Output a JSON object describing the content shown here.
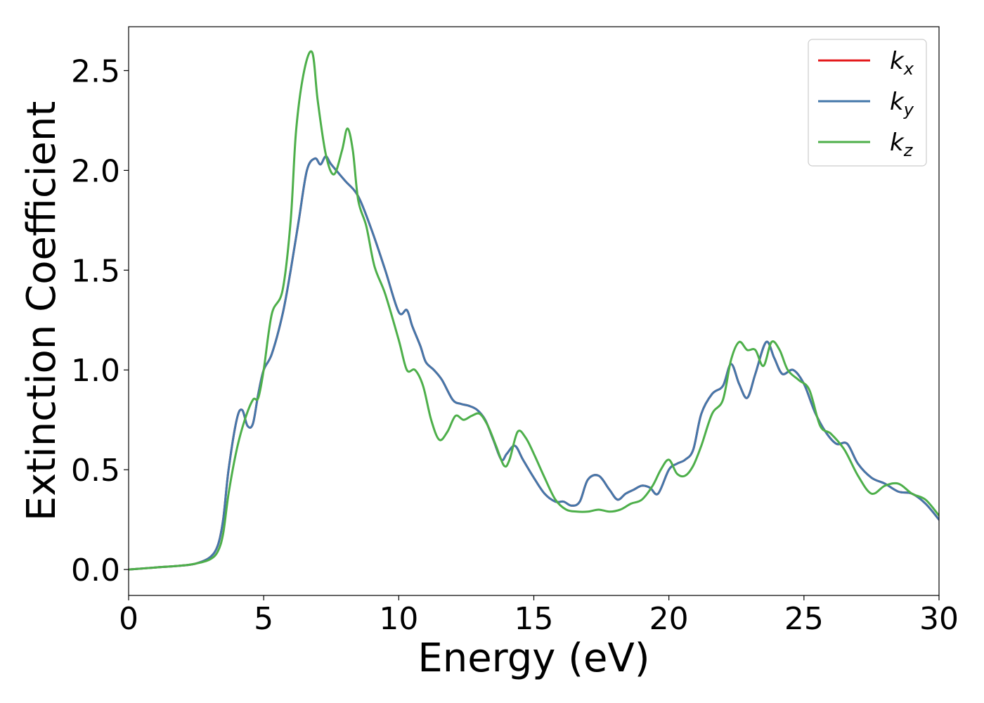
{
  "chart_data": {
    "type": "line",
    "xlabel": "Energy (eV)",
    "ylabel": "Extinction Coefficient",
    "xlim": [
      0,
      30
    ],
    "ylim": [
      -0.13,
      2.72
    ],
    "xticks": [
      0,
      5,
      10,
      15,
      20,
      25,
      30
    ],
    "xtick_labels": [
      "0",
      "5",
      "10",
      "15",
      "20",
      "25",
      "30"
    ],
    "yticks": [
      0.0,
      0.5,
      1.0,
      1.5,
      2.0,
      2.5
    ],
    "ytick_labels": [
      "0.0",
      "0.5",
      "1.0",
      "1.5",
      "2.0",
      "2.5"
    ],
    "grid": false,
    "legend_position": "top-right",
    "series": [
      {
        "name": "k_x",
        "legend_base": "k",
        "legend_sub": "x",
        "color": "#e41a1c",
        "x": [
          0,
          1,
          2,
          2.5,
          3,
          3.3,
          3.5,
          3.7,
          4.0,
          4.2,
          4.4,
          4.6,
          4.8,
          5.0,
          5.3,
          5.7,
          6.0,
          6.3,
          6.6,
          6.9,
          7.1,
          7.3,
          7.5,
          8.0,
          8.5,
          9.0,
          9.5,
          10.0,
          10.3,
          10.5,
          10.8,
          11.0,
          11.3,
          11.6,
          12.0,
          12.3,
          12.6,
          12.9,
          13.2,
          13.5,
          13.8,
          14.0,
          14.3,
          14.6,
          15.0,
          15.4,
          15.8,
          16.1,
          16.4,
          16.7,
          17.0,
          17.4,
          17.8,
          18.1,
          18.4,
          18.7,
          19.0,
          19.3,
          19.6,
          20.0,
          20.3,
          20.6,
          20.9,
          21.2,
          21.6,
          22.0,
          22.3,
          22.6,
          22.9,
          23.2,
          23.6,
          23.9,
          24.2,
          24.6,
          25.0,
          25.4,
          25.8,
          26.2,
          26.6,
          27.0,
          27.5,
          28.0,
          28.5,
          29.0,
          29.5,
          30.0
        ],
        "y": [
          0.0,
          0.01,
          0.02,
          0.03,
          0.06,
          0.12,
          0.25,
          0.5,
          0.75,
          0.8,
          0.72,
          0.73,
          0.88,
          1.0,
          1.08,
          1.28,
          1.5,
          1.75,
          2.0,
          2.06,
          2.03,
          2.07,
          2.03,
          1.95,
          1.87,
          1.7,
          1.5,
          1.29,
          1.3,
          1.22,
          1.12,
          1.04,
          1.0,
          0.95,
          0.85,
          0.83,
          0.82,
          0.8,
          0.75,
          0.65,
          0.55,
          0.58,
          0.62,
          0.55,
          0.46,
          0.38,
          0.34,
          0.34,
          0.32,
          0.34,
          0.45,
          0.47,
          0.4,
          0.35,
          0.38,
          0.4,
          0.42,
          0.41,
          0.38,
          0.5,
          0.53,
          0.55,
          0.6,
          0.78,
          0.88,
          0.92,
          1.03,
          0.93,
          0.86,
          0.98,
          1.14,
          1.06,
          0.98,
          1.0,
          0.93,
          0.79,
          0.69,
          0.63,
          0.63,
          0.53,
          0.46,
          0.43,
          0.39,
          0.38,
          0.33,
          0.25
        ]
      },
      {
        "name": "k_y",
        "legend_base": "k",
        "legend_sub": "y",
        "color": "#4477aa",
        "x": [
          0,
          1,
          2,
          2.5,
          3,
          3.3,
          3.5,
          3.7,
          4.0,
          4.2,
          4.4,
          4.6,
          4.8,
          5.0,
          5.3,
          5.7,
          6.0,
          6.3,
          6.6,
          6.9,
          7.1,
          7.3,
          7.5,
          8.0,
          8.5,
          9.0,
          9.5,
          10.0,
          10.3,
          10.5,
          10.8,
          11.0,
          11.3,
          11.6,
          12.0,
          12.3,
          12.6,
          12.9,
          13.2,
          13.5,
          13.8,
          14.0,
          14.3,
          14.6,
          15.0,
          15.4,
          15.8,
          16.1,
          16.4,
          16.7,
          17.0,
          17.4,
          17.8,
          18.1,
          18.4,
          18.7,
          19.0,
          19.3,
          19.6,
          20.0,
          20.3,
          20.6,
          20.9,
          21.2,
          21.6,
          22.0,
          22.3,
          22.6,
          22.9,
          23.2,
          23.6,
          23.9,
          24.2,
          24.6,
          25.0,
          25.4,
          25.8,
          26.2,
          26.6,
          27.0,
          27.5,
          28.0,
          28.5,
          29.0,
          29.5,
          30.0
        ],
        "y": [
          0.0,
          0.01,
          0.02,
          0.03,
          0.06,
          0.12,
          0.25,
          0.5,
          0.75,
          0.8,
          0.72,
          0.73,
          0.88,
          1.0,
          1.08,
          1.28,
          1.5,
          1.75,
          2.0,
          2.06,
          2.03,
          2.07,
          2.03,
          1.95,
          1.87,
          1.7,
          1.5,
          1.29,
          1.3,
          1.22,
          1.12,
          1.04,
          1.0,
          0.95,
          0.85,
          0.83,
          0.82,
          0.8,
          0.75,
          0.65,
          0.55,
          0.58,
          0.62,
          0.55,
          0.46,
          0.38,
          0.34,
          0.34,
          0.32,
          0.34,
          0.45,
          0.47,
          0.4,
          0.35,
          0.38,
          0.4,
          0.42,
          0.41,
          0.38,
          0.5,
          0.53,
          0.55,
          0.6,
          0.78,
          0.88,
          0.92,
          1.03,
          0.93,
          0.86,
          0.98,
          1.14,
          1.06,
          0.98,
          1.0,
          0.93,
          0.79,
          0.69,
          0.63,
          0.63,
          0.53,
          0.46,
          0.43,
          0.39,
          0.38,
          0.33,
          0.25
        ]
      },
      {
        "name": "k_z",
        "legend_base": "k",
        "legend_sub": "z",
        "color": "#4daf4a",
        "x": [
          0,
          1,
          2,
          2.5,
          3,
          3.3,
          3.5,
          3.7,
          4.0,
          4.3,
          4.6,
          4.8,
          5.0,
          5.3,
          5.7,
          6.0,
          6.2,
          6.5,
          6.8,
          7.0,
          7.3,
          7.6,
          7.9,
          8.1,
          8.3,
          8.5,
          8.8,
          9.1,
          9.5,
          10.0,
          10.3,
          10.6,
          10.9,
          11.2,
          11.5,
          11.8,
          12.1,
          12.4,
          12.7,
          13.0,
          13.3,
          13.6,
          13.9,
          14.1,
          14.4,
          14.7,
          15.0,
          15.4,
          15.8,
          16.2,
          16.6,
          17.0,
          17.4,
          17.8,
          18.2,
          18.6,
          19.0,
          19.4,
          19.7,
          20.0,
          20.3,
          20.6,
          20.9,
          21.2,
          21.6,
          22.0,
          22.3,
          22.6,
          22.9,
          23.2,
          23.5,
          23.8,
          24.1,
          24.4,
          24.8,
          25.2,
          25.6,
          26.0,
          26.5,
          27.0,
          27.5,
          28.0,
          28.5,
          29.0,
          29.5,
          30.0
        ],
        "y": [
          0.0,
          0.01,
          0.02,
          0.03,
          0.05,
          0.09,
          0.18,
          0.38,
          0.6,
          0.75,
          0.85,
          0.86,
          1.0,
          1.28,
          1.4,
          1.75,
          2.2,
          2.5,
          2.59,
          2.35,
          2.08,
          1.98,
          2.1,
          2.21,
          2.1,
          1.85,
          1.72,
          1.52,
          1.38,
          1.15,
          1.0,
          1.0,
          0.92,
          0.75,
          0.65,
          0.69,
          0.77,
          0.75,
          0.77,
          0.78,
          0.72,
          0.62,
          0.52,
          0.55,
          0.69,
          0.66,
          0.58,
          0.46,
          0.35,
          0.3,
          0.29,
          0.29,
          0.3,
          0.29,
          0.3,
          0.33,
          0.35,
          0.42,
          0.5,
          0.55,
          0.48,
          0.47,
          0.52,
          0.62,
          0.78,
          0.85,
          1.05,
          1.14,
          1.1,
          1.1,
          1.02,
          1.14,
          1.1,
          1.0,
          0.95,
          0.9,
          0.72,
          0.68,
          0.6,
          0.47,
          0.38,
          0.42,
          0.43,
          0.38,
          0.35,
          0.27
        ]
      }
    ]
  }
}
